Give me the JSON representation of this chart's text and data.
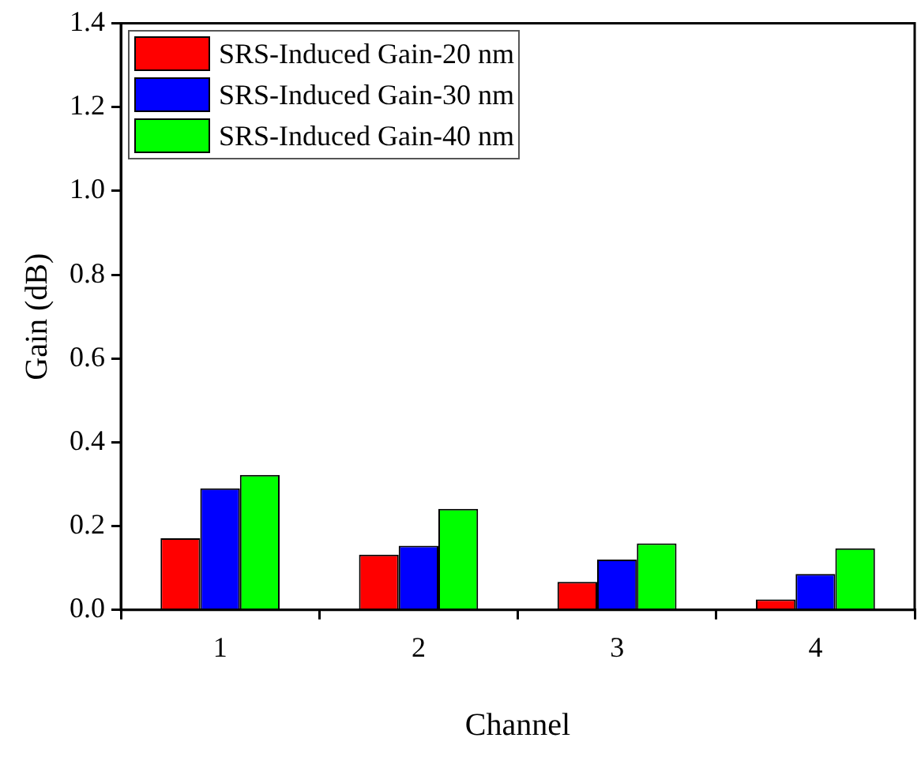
{
  "chart_data": {
    "type": "bar",
    "xlabel": "Channel",
    "ylabel": "Gain (dB)",
    "categories": [
      "1",
      "2",
      "3",
      "4"
    ],
    "series": [
      {
        "name": "SRS-Induced Gain-20 nm",
        "color": "#ff0000",
        "values": [
          0.171,
          0.132,
          0.067,
          0.025
        ]
      },
      {
        "name": "SRS-Induced Gain-30 nm",
        "color": "#0000ff",
        "values": [
          0.29,
          0.153,
          0.12,
          0.086
        ]
      },
      {
        "name": "SRS-Induced Gain-40 nm",
        "color": "#00ff00",
        "values": [
          0.322,
          0.241,
          0.159,
          0.147
        ]
      }
    ],
    "ylim": [
      0,
      1.4
    ],
    "yticks": [
      {
        "value": 0,
        "label": "0.0"
      },
      {
        "value": 0.2,
        "label": "0.2"
      },
      {
        "value": 0.4,
        "label": "0.4"
      },
      {
        "value": 0.6,
        "label": "0.6"
      },
      {
        "value": 0.8,
        "label": "0.8"
      },
      {
        "value": 1,
        "label": "1.0"
      },
      {
        "value": 1.2,
        "label": "1.2"
      },
      {
        "value": 1.4,
        "label": "1.4"
      }
    ],
    "grid": false,
    "legend": "top left"
  }
}
